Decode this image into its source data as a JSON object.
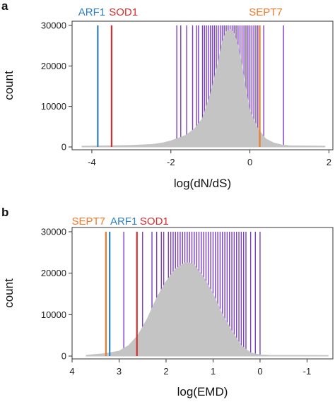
{
  "colors": {
    "purple": "#7b3fc4",
    "gray": "#c4c4c4",
    "blue": "#2f7fbf",
    "red": "#d62e2e",
    "orange": "#ee7a2a"
  },
  "chart_data": [
    {
      "panel": "a",
      "type": "area",
      "xlabel": "log(dN/dS)",
      "ylabel": "count",
      "xlim": [
        -4.5,
        2.1
      ],
      "ylim": [
        0,
        30000
      ],
      "xticks": [
        -4,
        -2,
        0,
        2
      ],
      "xtick_labels": [
        "-4",
        "-2",
        "0",
        "2"
      ],
      "yticks": [
        0,
        10000,
        20000,
        30000
      ],
      "ytick_labels": [
        "0",
        "10000",
        "20000",
        "30000"
      ],
      "histogram": {
        "x": [
          -4.25,
          -3.5,
          -3.0,
          -2.5,
          -2.2,
          -2.0,
          -1.8,
          -1.6,
          -1.4,
          -1.2,
          -1.0,
          -0.9,
          -0.8,
          -0.7,
          -0.6,
          -0.5,
          -0.4,
          -0.3,
          -0.2,
          -0.1,
          0.0,
          0.2,
          0.4,
          0.6,
          0.8,
          1.0,
          1.9
        ],
        "counts": [
          200,
          300,
          400,
          600,
          1000,
          1500,
          2200,
          3000,
          4500,
          7000,
          13000,
          17000,
          21000,
          26000,
          28500,
          29000,
          28000,
          25000,
          20000,
          14000,
          9000,
          4500,
          2000,
          1000,
          500,
          300,
          200
        ]
      },
      "highlighted_genes": [
        {
          "name": "ARF1",
          "x": -3.85,
          "color": "blue",
          "label_x": -4.0
        },
        {
          "name": "SOD1",
          "x": -3.5,
          "color": "red",
          "label_x": -3.2
        },
        {
          "name": "SEPT7",
          "x": 0.25,
          "color": "orange",
          "label_x": 0.4
        }
      ],
      "purple_lines_x": [
        -1.85,
        -1.75,
        -1.6,
        -1.45,
        -1.35,
        -1.3,
        -1.2,
        -1.15,
        -1.1,
        -1.05,
        -1.0,
        -0.95,
        -0.9,
        -0.85,
        -0.8,
        -0.75,
        -0.7,
        -0.65,
        -0.6,
        -0.55,
        -0.5,
        -0.45,
        -0.4,
        -0.35,
        -0.3,
        -0.25,
        -0.2,
        -0.15,
        -0.1,
        -0.05,
        0.0,
        0.05,
        0.1,
        0.15,
        0.2,
        0.35,
        0.85
      ]
    },
    {
      "panel": "b",
      "type": "area",
      "xlabel": "log(EMD)",
      "ylabel": "count",
      "xlim": [
        4,
        -1.55
      ],
      "ylim": [
        0,
        30000
      ],
      "xticks": [
        4,
        3,
        2,
        1,
        0,
        -1
      ],
      "xtick_labels": [
        "4",
        "3",
        "2",
        "1",
        "0",
        "-1"
      ],
      "yticks": [
        0,
        10000,
        20000,
        30000
      ],
      "ytick_labels": [
        "0",
        "10000",
        "20000",
        "30000"
      ],
      "histogram": {
        "x": [
          3.7,
          3.3,
          3.0,
          2.8,
          2.6,
          2.4,
          2.2,
          2.0,
          1.8,
          1.6,
          1.5,
          1.4,
          1.2,
          1.0,
          0.8,
          0.6,
          0.4,
          0.2,
          0.0,
          -0.2,
          -1.45
        ],
        "counts": [
          200,
          600,
          1200,
          2500,
          5000,
          9000,
          14000,
          18000,
          21000,
          22500,
          22500,
          22000,
          19000,
          15000,
          10000,
          6000,
          2500,
          800,
          300,
          200,
          150
        ]
      },
      "highlighted_genes": [
        {
          "name": "SEPT7",
          "x": 3.28,
          "color": "orange",
          "label_x": 3.65
        },
        {
          "name": "ARF1",
          "x": 3.2,
          "color": "blue",
          "label_x": 2.9
        },
        {
          "name": "SOD1",
          "x": 2.62,
          "color": "red",
          "label_x": 2.25
        }
      ],
      "purple_lines_x": [
        2.9,
        2.5,
        2.3,
        2.2,
        2.1,
        2.05,
        1.95,
        1.9,
        1.85,
        1.8,
        1.75,
        1.7,
        1.65,
        1.6,
        1.55,
        1.5,
        1.45,
        1.4,
        1.35,
        1.3,
        1.25,
        1.2,
        1.15,
        1.1,
        1.05,
        1.0,
        0.95,
        0.9,
        0.85,
        0.8,
        0.75,
        0.7,
        0.65,
        0.6,
        0.55,
        0.5,
        0.45,
        0.4,
        0.35,
        0.3,
        0.2,
        0.1,
        0.0
      ]
    }
  ]
}
